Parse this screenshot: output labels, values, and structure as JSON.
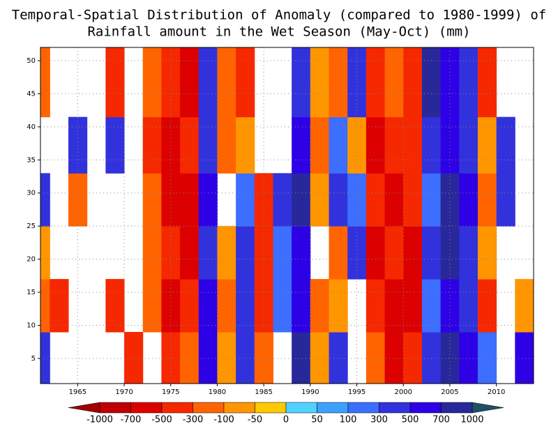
{
  "chart_data": {
    "type": "heatmap",
    "title": "Temporal-Spatial Distribution of Anomaly (compared to 1980-1999) of",
    "subtitle": "Rainfall amount in the Wet Season (May-Oct) (mm)",
    "x": [
      1961,
      1963,
      1965,
      1967,
      1969,
      1971,
      1973,
      1975,
      1977,
      1979,
      1981,
      1983,
      1985,
      1987,
      1989,
      1991,
      1993,
      1995,
      1997,
      1999,
      2001,
      2003,
      2005,
      2007,
      2009,
      2011,
      2013
    ],
    "y": [
      5,
      13,
      21,
      29,
      37,
      46
    ],
    "values": [
      [
        300,
        null,
        null,
        null,
        null,
        -500,
        null,
        -500,
        -300,
        500,
        -100,
        300,
        -300,
        null,
        700,
        -100,
        300,
        null,
        -300,
        -700,
        -500,
        300,
        700,
        500,
        100,
        null,
        500
      ],
      [
        -300,
        -500,
        null,
        null,
        -500,
        null,
        -300,
        -700,
        -500,
        500,
        -300,
        300,
        -500,
        100,
        500,
        -300,
        -100,
        null,
        -500,
        -700,
        -700,
        100,
        500,
        300,
        -500,
        null,
        -100
      ],
      [
        -100,
        null,
        null,
        null,
        null,
        null,
        -300,
        -500,
        -700,
        300,
        -100,
        300,
        -500,
        100,
        500,
        null,
        -300,
        300,
        -700,
        -500,
        -700,
        300,
        700,
        300,
        -100,
        null,
        null
      ],
      [
        300,
        null,
        -300,
        null,
        null,
        null,
        -300,
        -700,
        -700,
        500,
        null,
        100,
        -500,
        300,
        700,
        -100,
        300,
        100,
        -500,
        -700,
        -500,
        100,
        700,
        500,
        -300,
        300,
        null
      ],
      [
        null,
        null,
        300,
        null,
        300,
        null,
        -500,
        -700,
        -500,
        300,
        -300,
        -100,
        null,
        null,
        500,
        -300,
        100,
        -100,
        -700,
        -500,
        -500,
        300,
        500,
        300,
        -100,
        300,
        null
      ],
      [
        -300,
        null,
        null,
        null,
        -500,
        null,
        -300,
        -500,
        -700,
        300,
        -300,
        -500,
        null,
        null,
        300,
        -100,
        -300,
        300,
        -500,
        -300,
        -500,
        700,
        500,
        300,
        -500,
        null,
        null
      ]
    ],
    "xlim": [
      1961,
      2014
    ],
    "xticks": [
      1965,
      1970,
      1975,
      1980,
      1985,
      1990,
      1995,
      2000,
      2005,
      2010
    ],
    "ylim": [
      1.2,
      52
    ],
    "yticks": [
      5,
      10,
      15,
      20,
      25,
      30,
      35,
      40,
      45,
      50
    ],
    "grid": true,
    "levels": [
      -1000,
      -700,
      -500,
      -300,
      -100,
      -50,
      0,
      50,
      100,
      300,
      500,
      700,
      1000
    ],
    "colors": [
      "#a00000",
      "#be0000",
      "#dc0000",
      "#f52800",
      "#ff6400",
      "#ff9600",
      "#ffc800",
      "#50d2ff",
      "#3ca0ff",
      "#3c6eff",
      "#3232dc",
      "#2d00e6",
      "#28289b",
      "#1e5064"
    ]
  }
}
